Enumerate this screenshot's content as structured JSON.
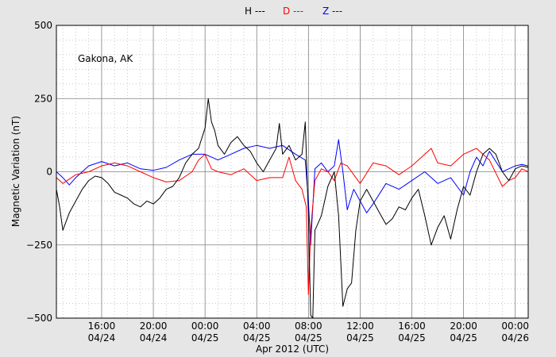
{
  "chart_data": {
    "type": "line",
    "legend": [
      {
        "label": "H ---",
        "color": "#000000"
      },
      {
        "label": "D ---",
        "color": "#ff0000"
      },
      {
        "label": "Z ---",
        "color": "#0000ff"
      }
    ],
    "annotation": "Gakona, AK",
    "xlabel": "Apr 2012 (UTC)",
    "ylabel": "Magnetic Variation (nT)",
    "xlim": [
      "2012-04-24 12:30",
      "2012-04-26 01:00"
    ],
    "ylim": [
      -500,
      500
    ],
    "yticks": [
      {
        "value": 500,
        "label": "500"
      },
      {
        "value": 250,
        "label": "250"
      },
      {
        "value": 0,
        "label": "0"
      },
      {
        "value": -250,
        "label": "−250"
      },
      {
        "value": -500,
        "label": "−500"
      }
    ],
    "xticks": [
      {
        "time": "2012-04-24 16:00",
        "label1": "16:00",
        "label2": "04/24"
      },
      {
        "time": "2012-04-24 20:00",
        "label1": "20:00",
        "label2": "04/24"
      },
      {
        "time": "2012-04-25 00:00",
        "label1": "00:00",
        "label2": "04/25"
      },
      {
        "time": "2012-04-25 04:00",
        "label1": "04:00",
        "label2": "04/25"
      },
      {
        "time": "2012-04-25 08:00",
        "label1": "08:00",
        "label2": "04/25"
      },
      {
        "time": "2012-04-25 12:00",
        "label1": "12:00",
        "label2": "04/25"
      },
      {
        "time": "2012-04-25 16:00",
        "label1": "16:00",
        "label2": "04/25"
      },
      {
        "time": "2012-04-25 20:00",
        "label1": "20:00",
        "label2": "04/25"
      },
      {
        "time": "2012-04-26 00:00",
        "label1": "00:00",
        "label2": "04/26"
      }
    ],
    "grid": true,
    "series": [
      {
        "name": "H",
        "color": "#000000",
        "points": [
          [
            "2012-04-24 12:30",
            -60
          ],
          [
            "2012-04-24 12:45",
            -120
          ],
          [
            "2012-04-24 13:00",
            -200
          ],
          [
            "2012-04-24 13:30",
            -140
          ],
          [
            "2012-04-24 14:00",
            -100
          ],
          [
            "2012-04-24 14:30",
            -60
          ],
          [
            "2012-04-24 15:00",
            -30
          ],
          [
            "2012-04-24 15:30",
            -15
          ],
          [
            "2012-04-24 16:00",
            -20
          ],
          [
            "2012-04-24 16:30",
            -40
          ],
          [
            "2012-04-24 17:00",
            -70
          ],
          [
            "2012-04-24 17:30",
            -80
          ],
          [
            "2012-04-24 18:00",
            -90
          ],
          [
            "2012-04-24 18:30",
            -110
          ],
          [
            "2012-04-24 19:00",
            -120
          ],
          [
            "2012-04-24 19:30",
            -100
          ],
          [
            "2012-04-24 20:00",
            -110
          ],
          [
            "2012-04-24 20:30",
            -90
          ],
          [
            "2012-04-24 21:00",
            -60
          ],
          [
            "2012-04-24 21:30",
            -50
          ],
          [
            "2012-04-24 22:00",
            -20
          ],
          [
            "2012-04-24 22:30",
            30
          ],
          [
            "2012-04-24 23:00",
            60
          ],
          [
            "2012-04-24 23:30",
            80
          ],
          [
            "2012-04-25 00:00",
            150
          ],
          [
            "2012-04-25 00:15",
            250
          ],
          [
            "2012-04-25 00:30",
            170
          ],
          [
            "2012-04-25 00:45",
            140
          ],
          [
            "2012-04-25 01:00",
            90
          ],
          [
            "2012-04-25 01:30",
            60
          ],
          [
            "2012-04-25 02:00",
            100
          ],
          [
            "2012-04-25 02:30",
            120
          ],
          [
            "2012-04-25 03:00",
            90
          ],
          [
            "2012-04-25 03:30",
            70
          ],
          [
            "2012-04-25 04:00",
            30
          ],
          [
            "2012-04-25 04:30",
            0
          ],
          [
            "2012-04-25 05:00",
            40
          ],
          [
            "2012-04-25 05:30",
            80
          ],
          [
            "2012-04-25 05:45",
            165
          ],
          [
            "2012-04-25 06:00",
            60
          ],
          [
            "2012-04-25 06:30",
            90
          ],
          [
            "2012-04-25 07:00",
            40
          ],
          [
            "2012-04-25 07:30",
            60
          ],
          [
            "2012-04-25 07:45",
            170
          ],
          [
            "2012-04-25 08:00",
            -150
          ],
          [
            "2012-04-25 08:10",
            -490
          ],
          [
            "2012-04-25 08:20",
            -500
          ],
          [
            "2012-04-25 08:30",
            -200
          ],
          [
            "2012-04-25 09:00",
            -150
          ],
          [
            "2012-04-25 09:30",
            -50
          ],
          [
            "2012-04-25 10:00",
            0
          ],
          [
            "2012-04-25 10:20",
            -150
          ],
          [
            "2012-04-25 10:40",
            -460
          ],
          [
            "2012-04-25 11:00",
            -400
          ],
          [
            "2012-04-25 11:20",
            -380
          ],
          [
            "2012-04-25 11:40",
            -200
          ],
          [
            "2012-04-25 12:00",
            -100
          ],
          [
            "2012-04-25 12:30",
            -60
          ],
          [
            "2012-04-25 13:00",
            -100
          ],
          [
            "2012-04-25 13:30",
            -140
          ],
          [
            "2012-04-25 14:00",
            -180
          ],
          [
            "2012-04-25 14:30",
            -160
          ],
          [
            "2012-04-25 15:00",
            -120
          ],
          [
            "2012-04-25 15:30",
            -130
          ],
          [
            "2012-04-25 16:00",
            -90
          ],
          [
            "2012-04-25 16:30",
            -60
          ],
          [
            "2012-04-25 17:00",
            -150
          ],
          [
            "2012-04-25 17:30",
            -250
          ],
          [
            "2012-04-25 18:00",
            -190
          ],
          [
            "2012-04-25 18:30",
            -150
          ],
          [
            "2012-04-25 19:00",
            -230
          ],
          [
            "2012-04-25 19:30",
            -130
          ],
          [
            "2012-04-25 20:00",
            -50
          ],
          [
            "2012-04-25 20:30",
            -80
          ],
          [
            "2012-04-25 21:00",
            0
          ],
          [
            "2012-04-25 21:30",
            60
          ],
          [
            "2012-04-25 22:00",
            80
          ],
          [
            "2012-04-25 22:30",
            60
          ],
          [
            "2012-04-25 23:00",
            0
          ],
          [
            "2012-04-25 23:30",
            -30
          ],
          [
            "2012-04-26 00:00",
            10
          ],
          [
            "2012-04-26 00:30",
            20
          ],
          [
            "2012-04-26 01:00",
            15
          ]
        ]
      },
      {
        "name": "D",
        "color": "#ff0000",
        "points": [
          [
            "2012-04-24 12:30",
            -20
          ],
          [
            "2012-04-24 13:00",
            -40
          ],
          [
            "2012-04-24 13:30",
            -25
          ],
          [
            "2012-04-24 14:00",
            -10
          ],
          [
            "2012-04-24 15:00",
            0
          ],
          [
            "2012-04-24 16:00",
            20
          ],
          [
            "2012-04-24 17:00",
            30
          ],
          [
            "2012-04-24 18:00",
            20
          ],
          [
            "2012-04-24 19:00",
            0
          ],
          [
            "2012-04-24 20:00",
            -20
          ],
          [
            "2012-04-24 21:00",
            -35
          ],
          [
            "2012-04-24 22:00",
            -30
          ],
          [
            "2012-04-24 23:00",
            0
          ],
          [
            "2012-04-24 23:30",
            40
          ],
          [
            "2012-04-25 00:00",
            60
          ],
          [
            "2012-04-25 00:30",
            10
          ],
          [
            "2012-04-25 01:00",
            0
          ],
          [
            "2012-04-25 02:00",
            -10
          ],
          [
            "2012-04-25 03:00",
            10
          ],
          [
            "2012-04-25 04:00",
            -30
          ],
          [
            "2012-04-25 05:00",
            -20
          ],
          [
            "2012-04-25 06:00",
            -20
          ],
          [
            "2012-04-25 06:30",
            50
          ],
          [
            "2012-04-25 07:00",
            -30
          ],
          [
            "2012-04-25 07:30",
            -60
          ],
          [
            "2012-04-25 07:50",
            -120
          ],
          [
            "2012-04-25 08:00",
            -420
          ],
          [
            "2012-04-25 08:10",
            -200
          ],
          [
            "2012-04-25 08:30",
            -30
          ],
          [
            "2012-04-25 09:00",
            10
          ],
          [
            "2012-04-25 09:30",
            0
          ],
          [
            "2012-04-25 10:00",
            -30
          ],
          [
            "2012-04-25 10:30",
            30
          ],
          [
            "2012-04-25 11:00",
            20
          ],
          [
            "2012-04-25 12:00",
            -40
          ],
          [
            "2012-04-25 13:00",
            30
          ],
          [
            "2012-04-25 14:00",
            20
          ],
          [
            "2012-04-25 15:00",
            -10
          ],
          [
            "2012-04-25 16:00",
            20
          ],
          [
            "2012-04-25 17:00",
            60
          ],
          [
            "2012-04-25 17:30",
            80
          ],
          [
            "2012-04-25 18:00",
            30
          ],
          [
            "2012-04-25 19:00",
            20
          ],
          [
            "2012-04-25 20:00",
            60
          ],
          [
            "2012-04-25 21:00",
            80
          ],
          [
            "2012-04-25 22:00",
            40
          ],
          [
            "2012-04-25 23:00",
            -50
          ],
          [
            "2012-04-25 23:30",
            -30
          ],
          [
            "2012-04-26 00:00",
            -20
          ],
          [
            "2012-04-26 00:30",
            10
          ],
          [
            "2012-04-26 01:00",
            0
          ]
        ]
      },
      {
        "name": "Z",
        "color": "#0000ff",
        "points": [
          [
            "2012-04-24 12:30",
            0
          ],
          [
            "2012-04-24 13:00",
            -20
          ],
          [
            "2012-04-24 13:30",
            -45
          ],
          [
            "2012-04-24 14:00",
            -20
          ],
          [
            "2012-04-24 15:00",
            20
          ],
          [
            "2012-04-24 16:00",
            35
          ],
          [
            "2012-04-24 17:00",
            20
          ],
          [
            "2012-04-24 18:00",
            30
          ],
          [
            "2012-04-24 19:00",
            10
          ],
          [
            "2012-04-24 20:00",
            5
          ],
          [
            "2012-04-24 21:00",
            15
          ],
          [
            "2012-04-24 22:00",
            40
          ],
          [
            "2012-04-24 23:00",
            60
          ],
          [
            "2012-04-25 00:00",
            60
          ],
          [
            "2012-04-25 01:00",
            40
          ],
          [
            "2012-04-25 02:00",
            60
          ],
          [
            "2012-04-25 03:00",
            80
          ],
          [
            "2012-04-25 04:00",
            90
          ],
          [
            "2012-04-25 05:00",
            80
          ],
          [
            "2012-04-25 06:00",
            90
          ],
          [
            "2012-04-25 07:00",
            60
          ],
          [
            "2012-04-25 07:45",
            40
          ],
          [
            "2012-04-25 08:00",
            -100
          ],
          [
            "2012-04-25 08:10",
            -250
          ],
          [
            "2012-04-25 08:30",
            10
          ],
          [
            "2012-04-25 09:00",
            30
          ],
          [
            "2012-04-25 09:30",
            0
          ],
          [
            "2012-04-25 10:00",
            20
          ],
          [
            "2012-04-25 10:20",
            110
          ],
          [
            "2012-04-25 10:40",
            0
          ],
          [
            "2012-04-25 11:00",
            -130
          ],
          [
            "2012-04-25 11:30",
            -60
          ],
          [
            "2012-04-25 12:00",
            -100
          ],
          [
            "2012-04-25 12:30",
            -140
          ],
          [
            "2012-04-25 13:00",
            -110
          ],
          [
            "2012-04-25 14:00",
            -40
          ],
          [
            "2012-04-25 15:00",
            -60
          ],
          [
            "2012-04-25 16:00",
            -30
          ],
          [
            "2012-04-25 17:00",
            0
          ],
          [
            "2012-04-25 18:00",
            -40
          ],
          [
            "2012-04-25 19:00",
            -20
          ],
          [
            "2012-04-25 20:00",
            -80
          ],
          [
            "2012-04-25 20:30",
            0
          ],
          [
            "2012-04-25 21:00",
            50
          ],
          [
            "2012-04-25 21:30",
            20
          ],
          [
            "2012-04-25 22:00",
            70
          ],
          [
            "2012-04-25 23:00",
            0
          ],
          [
            "2012-04-25 23:30",
            10
          ],
          [
            "2012-04-26 00:00",
            20
          ],
          [
            "2012-04-26 00:30",
            25
          ],
          [
            "2012-04-26 01:00",
            20
          ]
        ]
      }
    ]
  }
}
